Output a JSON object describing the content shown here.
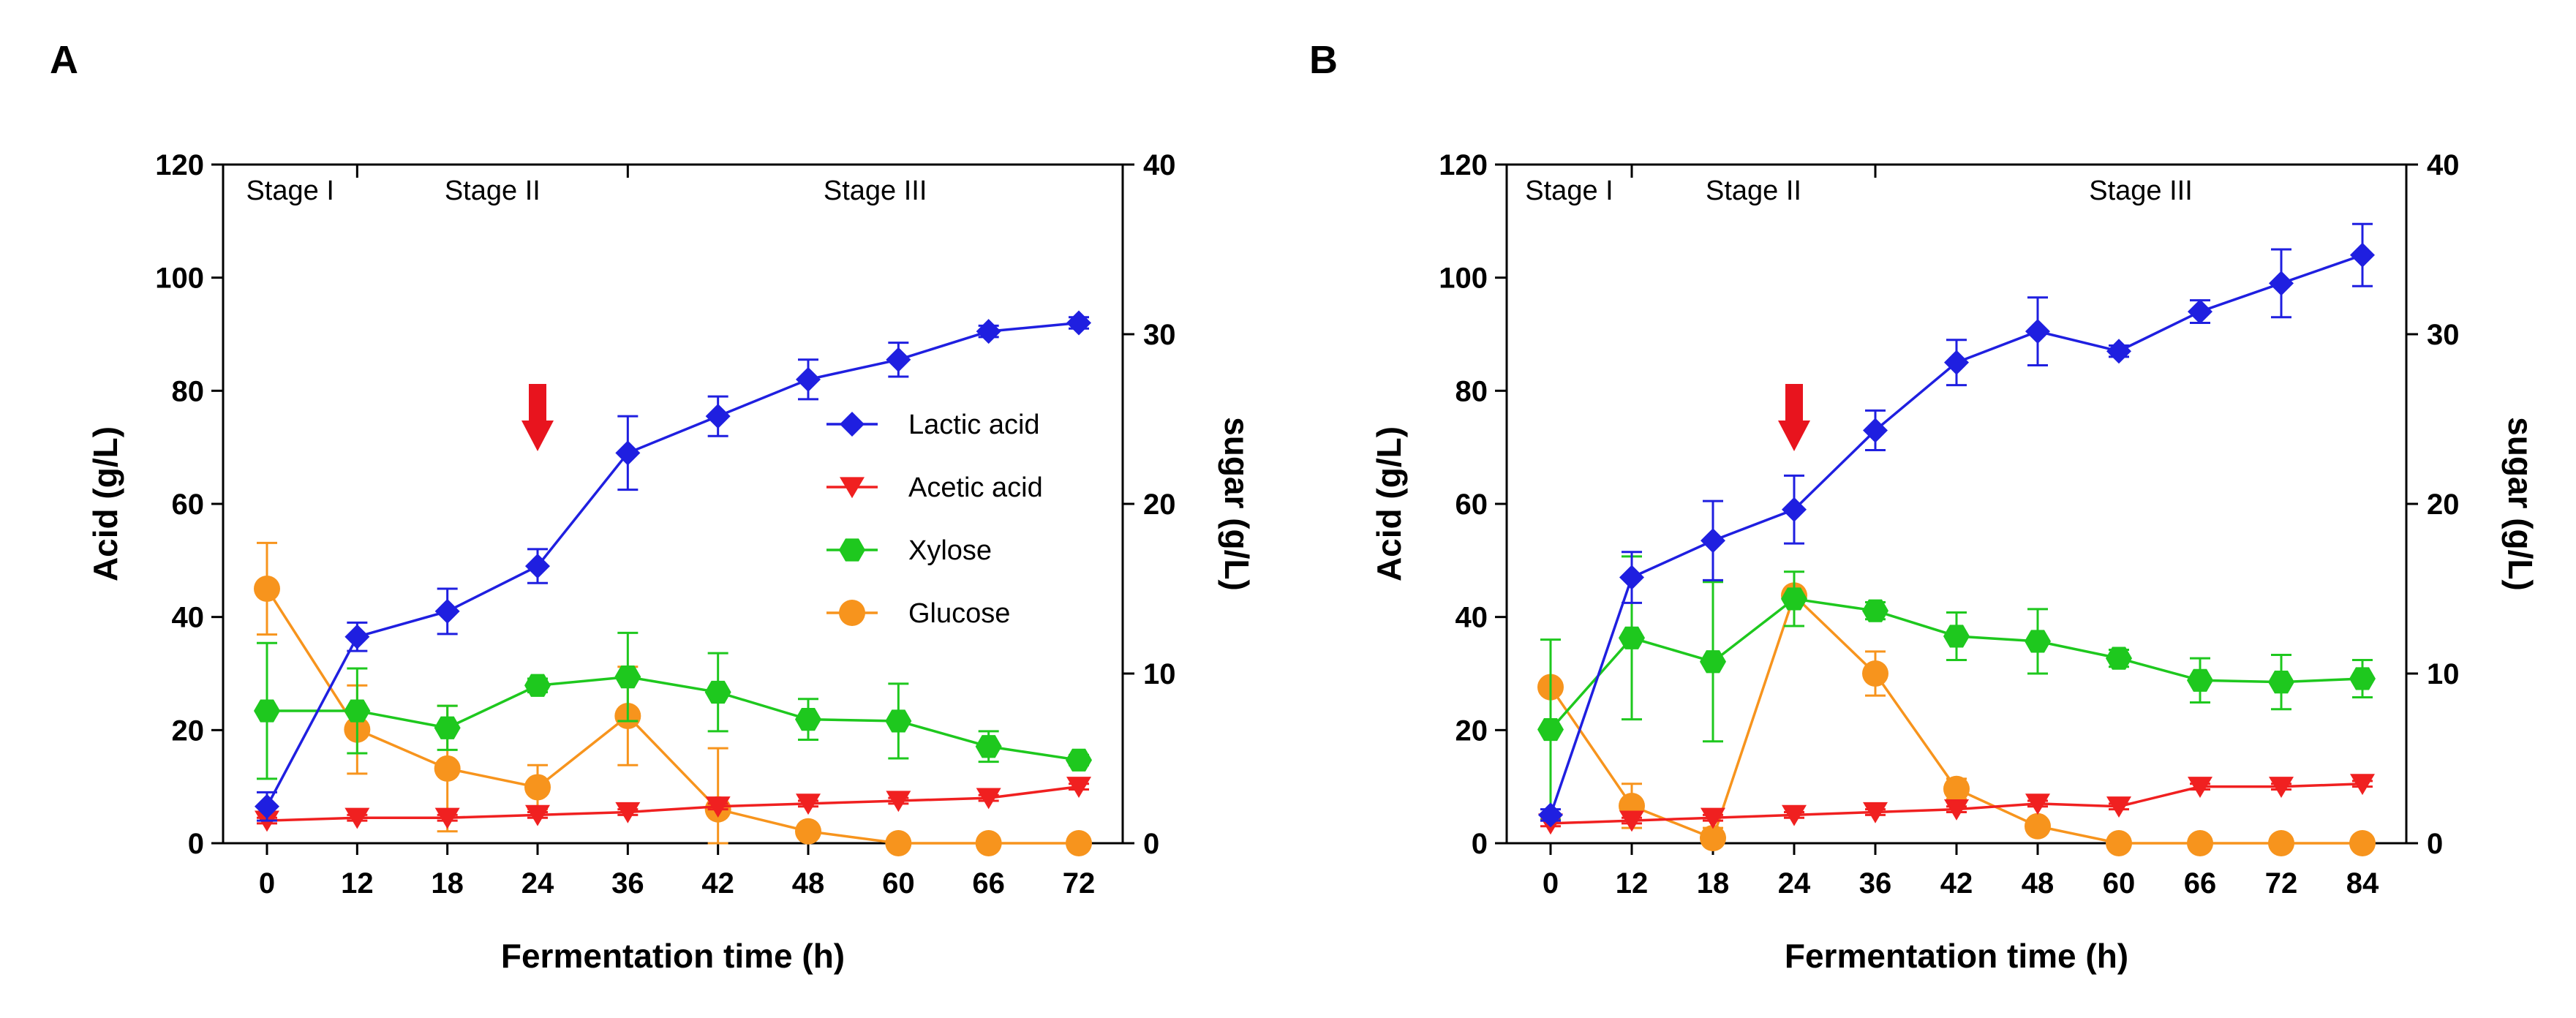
{
  "chart_data": [
    {
      "panel": "A",
      "type": "line",
      "xlabel": "Fermentation time (h)",
      "ylabel_left": "Acid (g/L)",
      "ylabel_right": "sugar (g/L)",
      "x_categories": [
        "0",
        "12",
        "18",
        "24",
        "36",
        "42",
        "48",
        "60",
        "66",
        "72"
      ],
      "ylim_left": [
        0,
        120
      ],
      "yticks_left": [
        0,
        20,
        40,
        60,
        80,
        100,
        120
      ],
      "ylim_right": [
        0,
        40
      ],
      "yticks_right": [
        0,
        10,
        20,
        30,
        40
      ],
      "stages": [
        {
          "label": "Stage I",
          "x_start": "0",
          "x_end": "12"
        },
        {
          "label": "Stage II",
          "x_start": "12",
          "x_end": "36"
        },
        {
          "label": "Stage III",
          "x_start": "36",
          "x_end": "72"
        }
      ],
      "feeding_arrow_x": "24",
      "legend": {
        "position": "center-right"
      },
      "series": [
        {
          "name": "Lactic acid",
          "axis": "left",
          "color": "#1f1fe0",
          "marker": "diamond",
          "values": [
            6.5,
            36.5,
            41,
            49,
            69,
            75.5,
            82,
            85.5,
            90.5,
            92
          ],
          "errors": [
            2.5,
            2.5,
            4,
            3,
            6.5,
            3.5,
            3.5,
            3,
            1,
            1
          ]
        },
        {
          "name": "Acetic acid",
          "axis": "left",
          "color": "#f02020",
          "marker": "triangle-down",
          "values": [
            4,
            4.5,
            4.5,
            5,
            5.5,
            6.5,
            7,
            7.5,
            8,
            10
          ],
          "errors": [
            0.5,
            0.5,
            0.5,
            0.5,
            0.5,
            0.5,
            0.5,
            0.5,
            0.5,
            0.5
          ]
        },
        {
          "name": "Xylose",
          "axis": "right",
          "color": "#1ec81e",
          "marker": "hexagon",
          "values": [
            7.8,
            7.8,
            6.8,
            9.3,
            9.8,
            8.9,
            7.3,
            7.2,
            5.7,
            4.9
          ],
          "errors": [
            4,
            2.5,
            1.3,
            0.4,
            2.6,
            2.3,
            1.2,
            2.2,
            0.9,
            0.3
          ]
        },
        {
          "name": "Glucose",
          "axis": "right",
          "color": "#f7941d",
          "marker": "circle",
          "values": [
            15,
            6.7,
            4.4,
            3.3,
            7.5,
            2,
            0.7,
            0,
            0,
            0
          ],
          "errors": [
            2.7,
            2.6,
            3.7,
            1.3,
            2.9,
            3.6,
            0,
            0,
            0,
            0
          ]
        }
      ]
    },
    {
      "panel": "B",
      "type": "line",
      "xlabel": "Fermentation time (h)",
      "ylabel_left": "Acid (g/L)",
      "ylabel_right": "sugar (g/L)",
      "x_categories": [
        "0",
        "12",
        "18",
        "24",
        "36",
        "42",
        "48",
        "60",
        "66",
        "72",
        "84"
      ],
      "ylim_left": [
        0,
        120
      ],
      "yticks_left": [
        0,
        20,
        40,
        60,
        80,
        100,
        120
      ],
      "ylim_right": [
        0,
        40
      ],
      "yticks_right": [
        0,
        10,
        20,
        30,
        40
      ],
      "stages": [
        {
          "label": "Stage I",
          "x_start": "0",
          "x_end": "12"
        },
        {
          "label": "Stage II",
          "x_start": "12",
          "x_end": "36"
        },
        {
          "label": "Stage III",
          "x_start": "36",
          "x_end": "84"
        }
      ],
      "feeding_arrow_x": "24",
      "series": [
        {
          "name": "Lactic acid",
          "axis": "left",
          "color": "#1f1fe0",
          "marker": "diamond",
          "values": [
            5,
            47,
            53.5,
            59,
            73,
            85,
            90.5,
            87,
            94,
            99,
            104
          ],
          "errors": [
            1,
            4.5,
            7,
            6,
            3.5,
            4,
            6,
            1,
            2,
            6,
            5.5
          ]
        },
        {
          "name": "Acetic acid",
          "axis": "left",
          "color": "#f02020",
          "marker": "triangle-down",
          "values": [
            3.5,
            4,
            4.5,
            5,
            5.5,
            6,
            7,
            6.5,
            10,
            10,
            10.5
          ],
          "errors": [
            0.5,
            0.5,
            0.5,
            0.5,
            0.5,
            0.5,
            0.5,
            0.5,
            0.5,
            0.5,
            0.5
          ]
        },
        {
          "name": "Xylose",
          "axis": "right",
          "color": "#1ec81e",
          "marker": "hexagon",
          "values": [
            6.7,
            12.1,
            10.7,
            14.4,
            13.7,
            12.2,
            11.9,
            10.9,
            9.6,
            9.5,
            9.7
          ],
          "errors": [
            5.3,
            4.8,
            4.7,
            1.6,
            0.5,
            1.4,
            1.9,
            0.5,
            1.3,
            1.6,
            1.1
          ]
        },
        {
          "name": "Glucose",
          "axis": "right",
          "color": "#f7941d",
          "marker": "circle",
          "values": [
            9.2,
            2.2,
            0.3,
            14.6,
            10,
            3.2,
            1,
            0,
            0,
            0,
            0
          ],
          "errors": [
            0,
            1.3,
            0.6,
            0,
            1.3,
            0.6,
            0,
            0,
            0,
            0,
            0
          ]
        }
      ]
    }
  ]
}
